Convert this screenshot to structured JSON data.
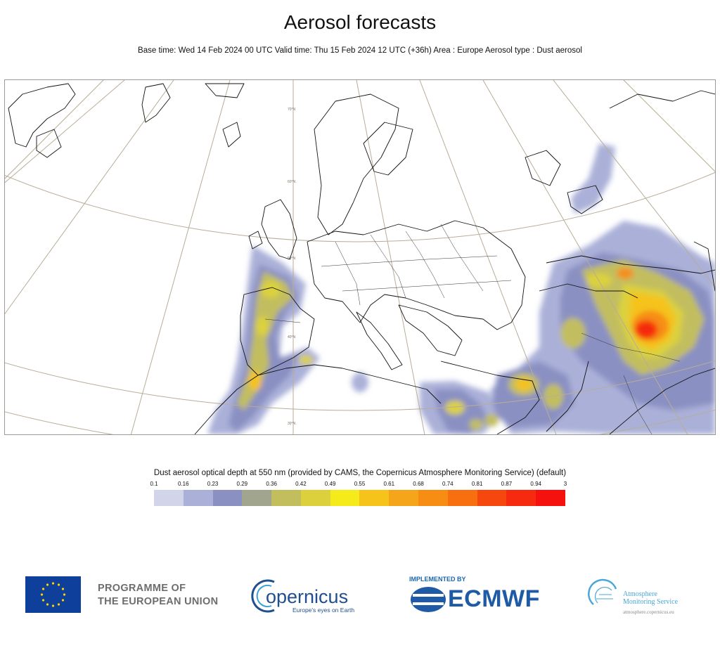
{
  "header": {
    "title": "Aerosol forecasts",
    "subtitle": "Base time: Wed 14 Feb 2024 00 UTC Valid time: Thu 15 Feb 2024 12 UTC (+36h) Area : Europe Aerosol type : Dust aerosol"
  },
  "map": {
    "graticule_labels": [
      "70°N",
      "60°N",
      "50°N",
      "40°N",
      "30°N"
    ]
  },
  "legend": {
    "title": "Dust aerosol optical depth at 550 nm (provided by CAMS, the Copernicus Atmosphere Monitoring Service) (default)",
    "ticks": [
      "0.1",
      "0.16",
      "0.23",
      "0.29",
      "0.36",
      "0.42",
      "0.49",
      "0.55",
      "0.61",
      "0.68",
      "0.74",
      "0.81",
      "0.87",
      "0.94",
      "3"
    ],
    "colors": [
      "#d2d5ea",
      "#aab0d8",
      "#8a90c2",
      "#a2a58d",
      "#c2be5e",
      "#dcd13c",
      "#f5ea1a",
      "#f5c31a",
      "#f5a51a",
      "#f78d12",
      "#f76f0e",
      "#f5470e",
      "#f52a0e",
      "#f5120e"
    ]
  },
  "footer": {
    "eu_line1": "PROGRAMME OF",
    "eu_line2": "THE EUROPEAN UNION",
    "copernicus_name": "opernicus",
    "copernicus_tagline": "Europe's eyes on Earth",
    "implemented_by": "IMPLEMENTED BY",
    "ecmwf_name": "ECMWF",
    "ams_line1": "Atmosphere",
    "ams_line2": "Monitoring Service",
    "ams_url": "atmosphere.copernicus.eu"
  }
}
